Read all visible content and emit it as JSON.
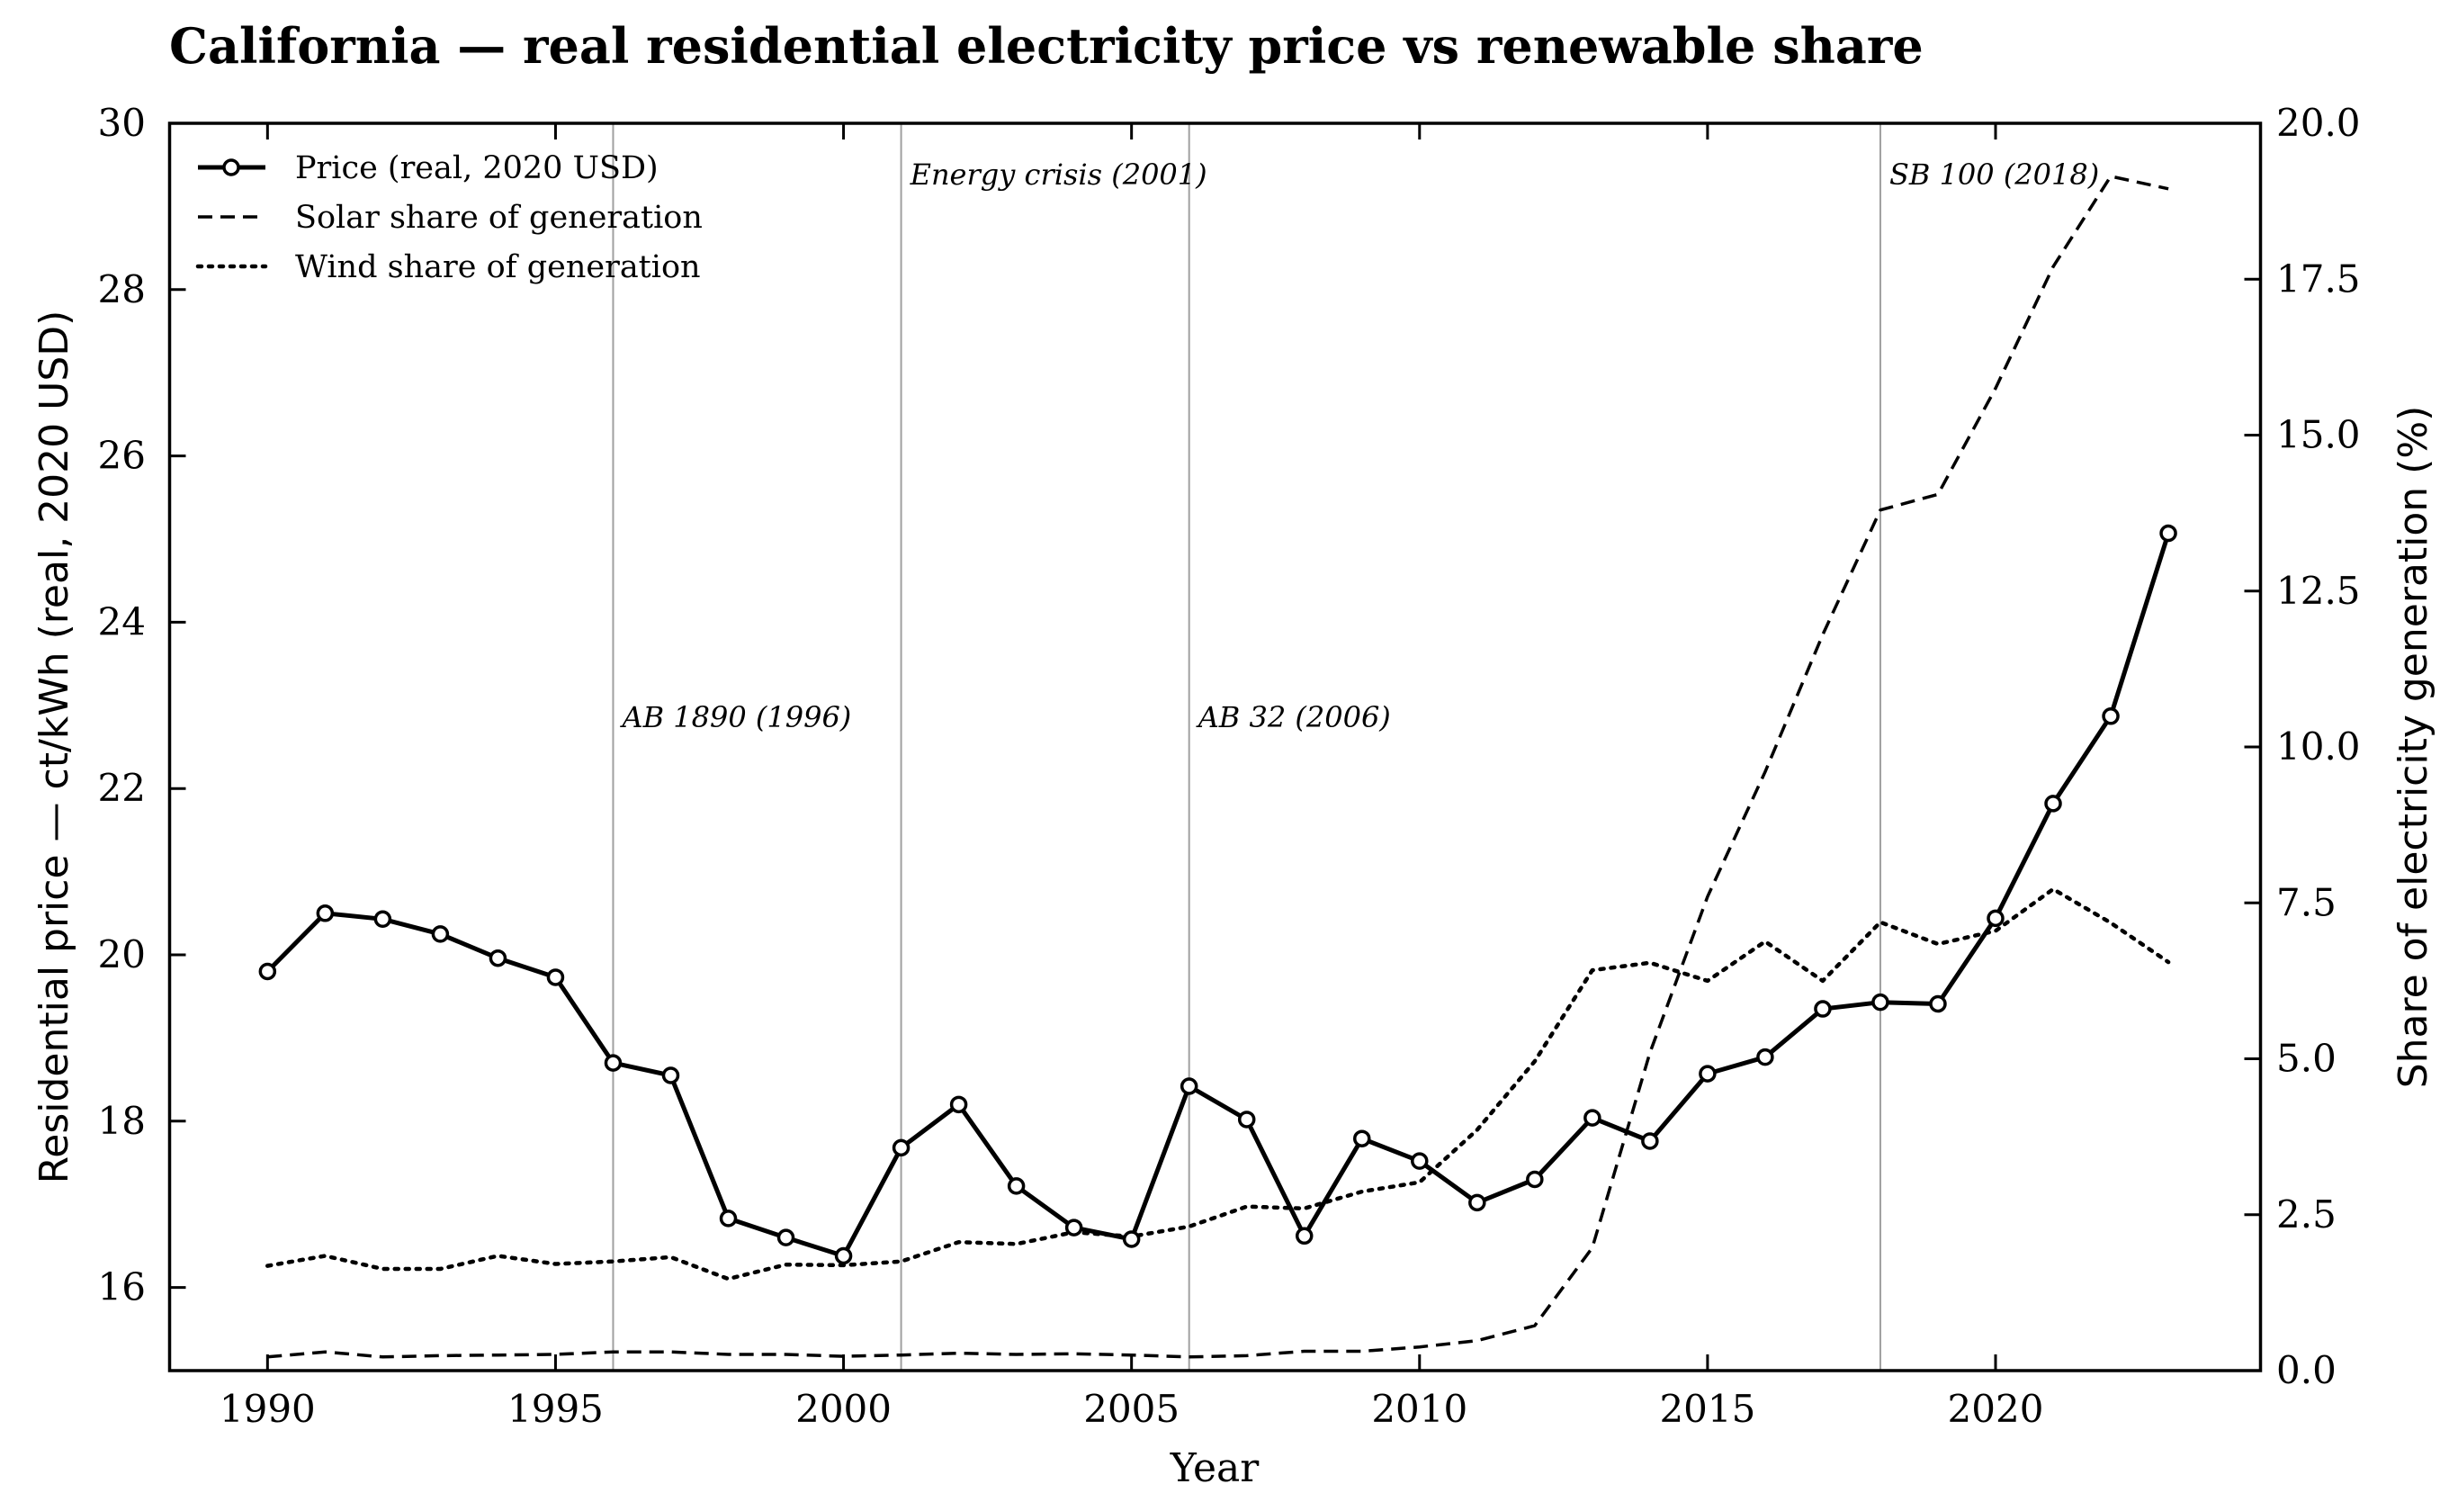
{
  "chart_data": {
    "type": "line",
    "title": "California — real residential electricity price vs renewable share",
    "xlabel": "Year",
    "ylabel_left": "Residential price — ct/kWh (real, 2020 USD)",
    "ylabel_right": "Share of electricity generation (%)",
    "xlim": [
      1988.3,
      2024.6
    ],
    "ylim_left": [
      15,
      30
    ],
    "ylim_right": [
      0,
      20
    ],
    "x_ticks": [
      1990,
      1995,
      2000,
      2005,
      2010,
      2015,
      2020
    ],
    "x_tick_labels": [
      "1990",
      "1995",
      "2000",
      "2005",
      "2010",
      "2015",
      "2020"
    ],
    "y_left_ticks": [
      16,
      18,
      20,
      22,
      24,
      26,
      28,
      30
    ],
    "y_left_tick_labels": [
      "16",
      "18",
      "20",
      "22",
      "24",
      "26",
      "28",
      "30"
    ],
    "y_right_ticks": [
      0,
      2.5,
      5,
      7.5,
      10,
      12.5,
      15,
      17.5,
      20
    ],
    "y_right_tick_labels": [
      "0.0",
      "2.5",
      "5.0",
      "7.5",
      "10.0",
      "12.5",
      "15.0",
      "17.5",
      "20.0"
    ],
    "grid": false,
    "legend_position": "top-left",
    "x": [
      1990,
      1991,
      1992,
      1993,
      1994,
      1995,
      1996,
      1997,
      1998,
      1999,
      2000,
      2001,
      2002,
      2003,
      2004,
      2005,
      2006,
      2007,
      2008,
      2009,
      2010,
      2011,
      2012,
      2013,
      2014,
      2015,
      2016,
      2017,
      2018,
      2019,
      2020,
      2021,
      2022,
      2023
    ],
    "series": [
      {
        "name": "Price (real, 2020 USD)",
        "axis": "left",
        "style": "solid-markers",
        "values": [
          19.8,
          20.5,
          20.43,
          20.25,
          19.96,
          19.73,
          18.7,
          18.55,
          16.83,
          16.6,
          16.38,
          17.68,
          18.2,
          17.22,
          16.72,
          16.58,
          18.42,
          18.02,
          16.62,
          17.79,
          17.52,
          17.02,
          17.3,
          18.04,
          17.76,
          18.57,
          18.77,
          19.35,
          19.43,
          19.41,
          20.44,
          21.82,
          22.87,
          25.07
        ]
      },
      {
        "name": "Solar share of generation",
        "axis": "right",
        "style": "dashed",
        "values": [
          0.22,
          0.3,
          0.22,
          0.24,
          0.25,
          0.26,
          0.3,
          0.3,
          0.26,
          0.26,
          0.23,
          0.25,
          0.28,
          0.26,
          0.27,
          0.25,
          0.22,
          0.24,
          0.31,
          0.31,
          0.38,
          0.48,
          0.72,
          1.97,
          5.1,
          7.6,
          9.6,
          11.8,
          13.8,
          14.05,
          15.75,
          17.7,
          19.15,
          18.95
        ]
      },
      {
        "name": "Wind share of generation",
        "axis": "right",
        "style": "dotted",
        "values": [
          1.68,
          1.84,
          1.63,
          1.63,
          1.84,
          1.71,
          1.75,
          1.82,
          1.47,
          1.7,
          1.69,
          1.75,
          2.06,
          2.03,
          2.22,
          2.15,
          2.31,
          2.63,
          2.6,
          2.87,
          3.02,
          3.86,
          4.96,
          6.42,
          6.54,
          6.25,
          6.88,
          6.25,
          7.19,
          6.84,
          7.05,
          7.72,
          7.18,
          6.55
        ]
      }
    ],
    "annotations": [
      {
        "x": 1996,
        "label": "AB 1890 (1996)",
        "label_level": "low"
      },
      {
        "x": 2001,
        "label": "Energy crisis (2001)",
        "label_level": "high"
      },
      {
        "x": 2006,
        "label": "AB 32 (2006)",
        "label_level": "low"
      },
      {
        "x": 2018,
        "label": "SB 100 (2018)",
        "label_level": "high"
      }
    ]
  }
}
